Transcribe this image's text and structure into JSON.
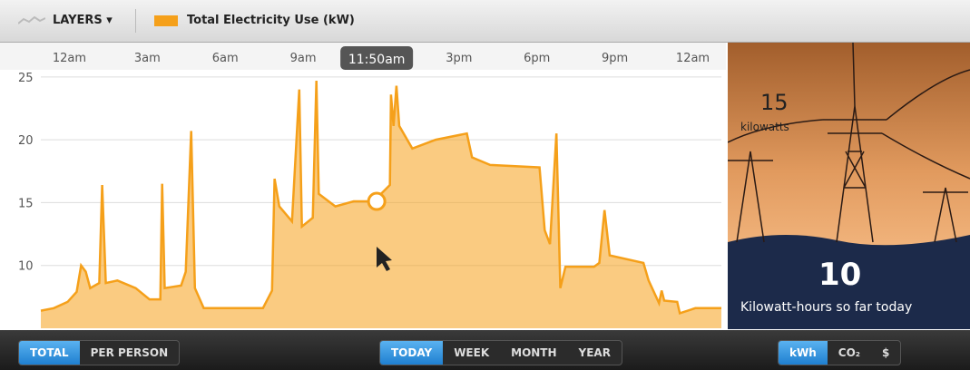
{
  "header": {
    "layers": "LAYERS"
  },
  "chart_data": {
    "type": "area",
    "series": [
      {
        "name": "Total Electricity Use (kW)",
        "color": "#f5a01a",
        "values": [
          6.4,
          6.6,
          7.1,
          7.9,
          10.0,
          9.5,
          8.2,
          8.6,
          16.4,
          8.6,
          8.8,
          8.2,
          7.3,
          7.3,
          16.5,
          8.2,
          8.4,
          9.5,
          20.7,
          8.2,
          6.6,
          6.6,
          8.0,
          16.9,
          14.7,
          13.5,
          24.0,
          13.1,
          13.8,
          24.7,
          15.7,
          14.7,
          15.1,
          15.1,
          16.4,
          23.6,
          21.1,
          24.3,
          21.1,
          19.3,
          20.0,
          20.5,
          18.6,
          18.0,
          17.8,
          12.8,
          11.7,
          20.5,
          8.2,
          9.9,
          9.9,
          10.2,
          14.4,
          10.8,
          10.2,
          8.8,
          7.0,
          8.0,
          7.2,
          7.1,
          6.2,
          6.6,
          6.6
        ]
      }
    ],
    "x": [
      -1.1,
      -0.6,
      -0.07,
      0.28,
      0.45,
      0.63,
      0.8,
      1.15,
      1.26,
      1.4,
      1.85,
      2.55,
      3.08,
      3.5,
      3.57,
      3.67,
      4.3,
      4.48,
      4.69,
      4.83,
      5.17,
      7.45,
      7.8,
      7.9,
      8.08,
      8.57,
      8.85,
      8.95,
      9.37,
      9.51,
      9.6,
      10.24,
      10.94,
      11.71,
      12.34,
      12.38,
      12.48,
      12.59,
      12.7,
      13.2,
      14.1,
      15.3,
      15.5,
      16.2,
      18.1,
      18.3,
      18.5,
      18.75,
      18.9,
      19.1,
      20.2,
      20.4,
      20.6,
      20.8,
      22.1,
      22.3,
      22.7,
      22.8,
      22.9,
      23.4,
      23.5,
      24.1,
      25.1
    ],
    "xlim": [
      -1.1,
      25.1
    ],
    "xticks": [
      {
        "value": 0,
        "label": "12am"
      },
      {
        "value": 3,
        "label": "3am"
      },
      {
        "value": 6,
        "label": "6am"
      },
      {
        "value": 9,
        "label": "9am"
      },
      {
        "value": 15,
        "label": "3pm"
      },
      {
        "value": 18,
        "label": "6pm"
      },
      {
        "value": 21,
        "label": "9pm"
      },
      {
        "value": 24,
        "label": "12am"
      }
    ],
    "ylim": [
      5,
      26
    ],
    "yticks": [
      10,
      15,
      20,
      25
    ],
    "grid": true,
    "cursor": {
      "label": "11:50am",
      "x": 11.83,
      "y": 15.1
    }
  },
  "panel": {
    "power": 15,
    "power_unit": "kilowatts",
    "energy": 10,
    "energy_label": "Kilowatt-hours so far today"
  },
  "controls": {
    "view": [
      "TOTAL",
      "PER PERSON"
    ],
    "range": [
      "TODAY",
      "WEEK",
      "MONTH",
      "YEAR"
    ],
    "unit": [
      "kWh",
      "CO₂",
      "$"
    ]
  }
}
